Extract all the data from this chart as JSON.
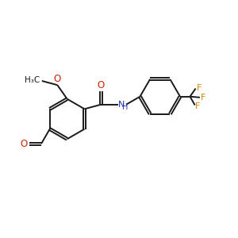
{
  "bg": "#ffffff",
  "bc": "#1a1a1a",
  "red": "#cc2200",
  "blue": "#2233bb",
  "gold": "#cc8800",
  "lw": 1.4,
  "fs": 7.5,
  "figsize": [
    3.0,
    3.0
  ],
  "dpi": 100,
  "xlim": [
    0,
    10
  ],
  "ylim": [
    0,
    10
  ]
}
